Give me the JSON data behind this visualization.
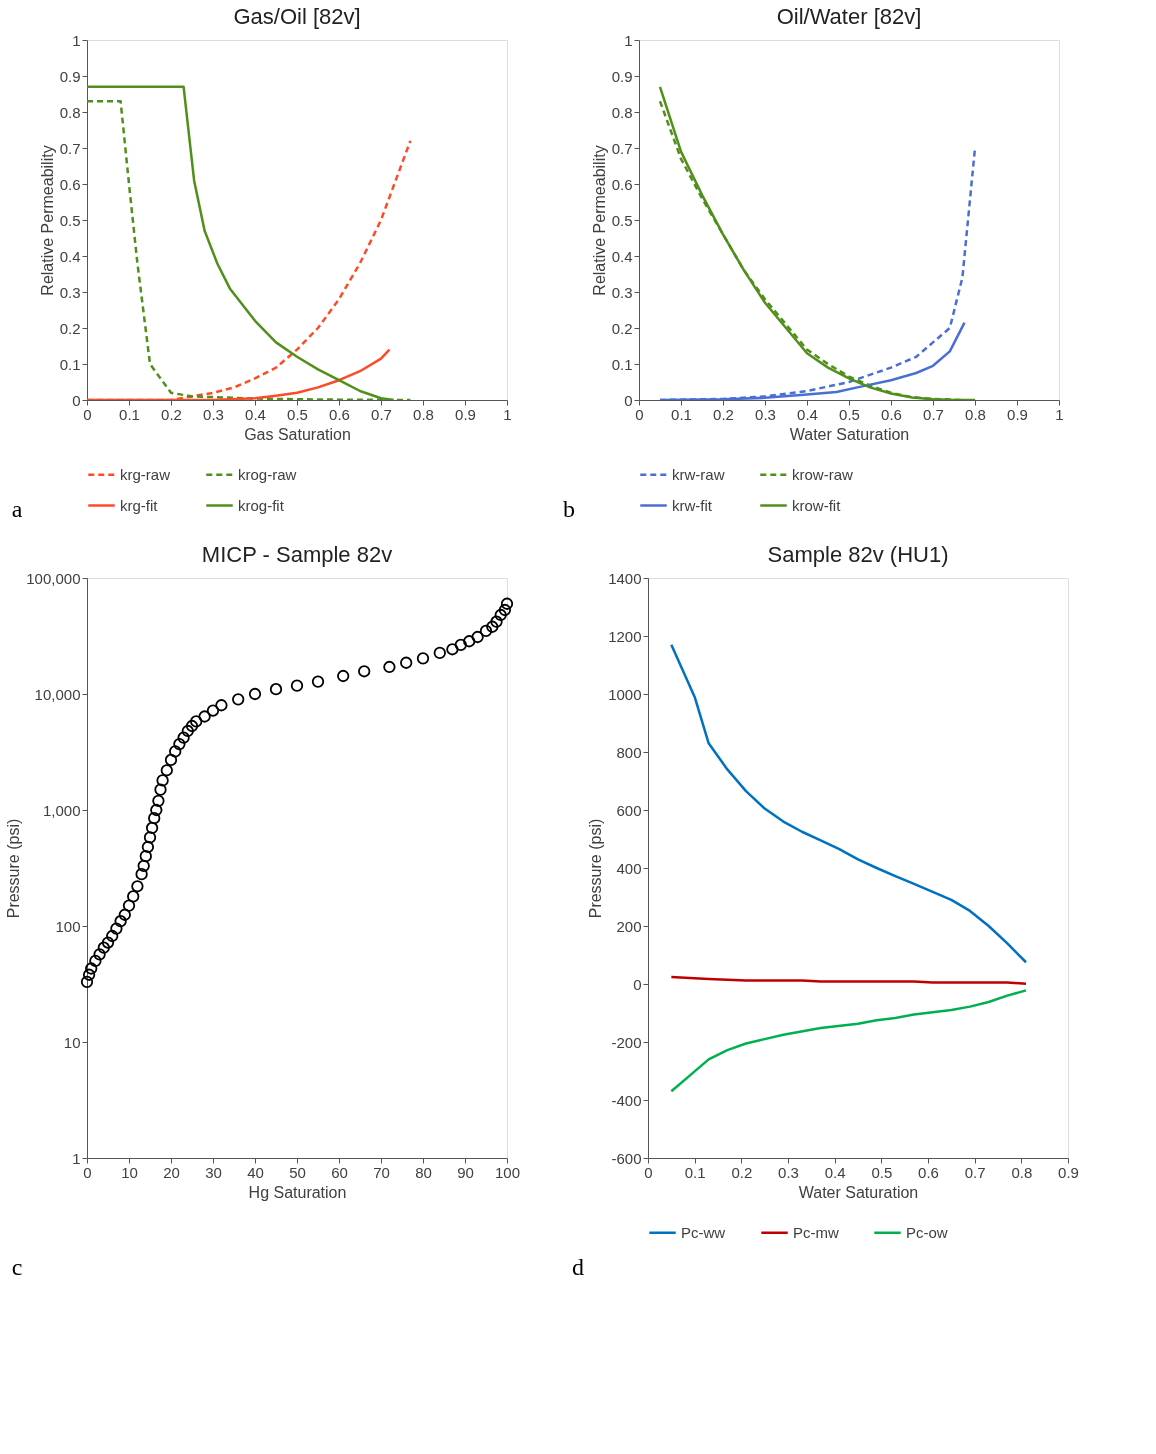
{
  "chart_data": [
    {
      "type": "line",
      "title": "Gas/Oil [82v]",
      "xlabel": "Gas Saturation",
      "ylabel": "Relative Permeability",
      "xlim": [
        0,
        1
      ],
      "ylim": [
        0,
        1
      ],
      "xticks": [
        0,
        0.1,
        0.2,
        0.3,
        0.4,
        0.5,
        0.6,
        0.7,
        0.8,
        0.9,
        1
      ],
      "yticks": [
        0,
        0.1,
        0.2,
        0.3,
        0.4,
        0.5,
        0.6,
        0.7,
        0.8,
        0.9,
        1
      ],
      "grid": false,
      "legend": "bottom",
      "annotations": [
        "a"
      ],
      "series": [
        {
          "name": "krg-raw",
          "color": "#ff4a26",
          "line_style": "dashed",
          "x": [
            0,
            0.1,
            0.2,
            0.25,
            0.3,
            0.35,
            0.4,
            0.45,
            0.5,
            0.55,
            0.6,
            0.65,
            0.7,
            0.77
          ],
          "values": [
            0,
            0,
            0,
            0.01,
            0.02,
            0.035,
            0.06,
            0.09,
            0.14,
            0.2,
            0.28,
            0.38,
            0.5,
            0.72
          ]
        },
        {
          "name": "krog-raw",
          "color": "#4f8f1a",
          "line_style": "dashed",
          "x": [
            0,
            0.08,
            0.1,
            0.12,
            0.15,
            0.2,
            0.25,
            0.3,
            0.4,
            0.5,
            0.6,
            0.77
          ],
          "values": [
            0.83,
            0.83,
            0.6,
            0.38,
            0.1,
            0.02,
            0.01,
            0.008,
            0.004,
            0.002,
            0.001,
            0
          ]
        },
        {
          "name": "krg-fit",
          "color": "#ff4a26",
          "line_style": "solid",
          "x": [
            0,
            0.1,
            0.2,
            0.3,
            0.4,
            0.45,
            0.5,
            0.55,
            0.6,
            0.65,
            0.7,
            0.72
          ],
          "values": [
            0,
            0,
            0,
            0,
            0.005,
            0.012,
            0.02,
            0.035,
            0.055,
            0.08,
            0.115,
            0.14
          ]
        },
        {
          "name": "krog-fit",
          "color": "#4f8f1a",
          "line_style": "solid",
          "x": [
            0,
            0.23,
            0.255,
            0.28,
            0.31,
            0.34,
            0.4,
            0.45,
            0.5,
            0.55,
            0.6,
            0.65,
            0.7,
            0.73
          ],
          "values": [
            0.87,
            0.87,
            0.61,
            0.47,
            0.38,
            0.31,
            0.22,
            0.16,
            0.12,
            0.085,
            0.055,
            0.025,
            0.005,
            0
          ]
        }
      ]
    },
    {
      "type": "line",
      "title": "Oil/Water [82v]",
      "xlabel": "Water Saturation",
      "ylabel": "Relative Permeability",
      "xlim": [
        0,
        1
      ],
      "ylim": [
        0,
        1
      ],
      "xticks": [
        0,
        0.1,
        0.2,
        0.3,
        0.4,
        0.5,
        0.6,
        0.7,
        0.8,
        0.9,
        1
      ],
      "yticks": [
        0,
        0.1,
        0.2,
        0.3,
        0.4,
        0.5,
        0.6,
        0.7,
        0.8,
        0.9,
        1
      ],
      "grid": false,
      "legend": "bottom",
      "annotations": [
        "b"
      ],
      "series": [
        {
          "name": "krw-raw",
          "color": "#4a6fd4",
          "line_style": "dashed",
          "x": [
            0.05,
            0.2,
            0.3,
            0.4,
            0.5,
            0.6,
            0.66,
            0.7,
            0.74,
            0.77,
            0.8
          ],
          "values": [
            0,
            0.003,
            0.01,
            0.025,
            0.05,
            0.09,
            0.12,
            0.16,
            0.2,
            0.34,
            0.7
          ]
        },
        {
          "name": "krow-raw",
          "color": "#4f8f1a",
          "line_style": "dashed",
          "x": [
            0.05,
            0.1,
            0.15,
            0.2,
            0.25,
            0.3,
            0.35,
            0.4,
            0.45,
            0.5,
            0.55,
            0.6,
            0.65,
            0.7,
            0.77
          ],
          "values": [
            0.83,
            0.67,
            0.56,
            0.46,
            0.36,
            0.28,
            0.21,
            0.14,
            0.1,
            0.065,
            0.04,
            0.02,
            0.008,
            0.003,
            0
          ]
        },
        {
          "name": "krw-fit",
          "color": "#4a6fd4",
          "line_style": "solid",
          "x": [
            0.05,
            0.2,
            0.3,
            0.4,
            0.47,
            0.52,
            0.6,
            0.66,
            0.7,
            0.74,
            0.775
          ],
          "values": [
            0,
            0.002,
            0.006,
            0.015,
            0.022,
            0.035,
            0.055,
            0.075,
            0.095,
            0.135,
            0.215
          ]
        },
        {
          "name": "krow-fit",
          "color": "#4f8f1a",
          "line_style": "solid",
          "x": [
            0.05,
            0.1,
            0.15,
            0.2,
            0.25,
            0.3,
            0.35,
            0.4,
            0.45,
            0.5,
            0.55,
            0.6,
            0.65,
            0.7,
            0.75,
            0.8
          ],
          "values": [
            0.87,
            0.69,
            0.57,
            0.46,
            0.36,
            0.27,
            0.2,
            0.13,
            0.09,
            0.06,
            0.035,
            0.018,
            0.007,
            0.002,
            0,
            0
          ]
        }
      ]
    },
    {
      "type": "scatter",
      "title": "MICP - Sample 82v",
      "xlabel": "Hg Saturation",
      "ylabel": "Pressure (psi)",
      "xlim": [
        0,
        100
      ],
      "ylim": [
        1,
        100000
      ],
      "xticks": [
        0,
        10,
        20,
        30,
        40,
        50,
        60,
        70,
        80,
        90,
        100
      ],
      "yticks": [
        1,
        10,
        100,
        {
          "value": 1000,
          "label": "1,000"
        },
        {
          "value": 10000,
          "label": "10,000"
        },
        {
          "value": 100000,
          "label": "100,000"
        }
      ],
      "log": "y",
      "grid": false,
      "legend": false,
      "marker": "circle",
      "annotations": [
        "c"
      ],
      "series": [
        {
          "color": "#000000",
          "x": [
            0,
            0.5,
            1,
            2,
            3,
            4,
            5,
            6,
            7,
            8,
            9,
            10,
            11,
            12,
            13,
            13.5,
            14,
            14.5,
            15,
            15.5,
            16,
            16.5,
            17,
            17.5,
            18,
            19,
            20,
            21,
            22,
            23,
            24,
            25,
            26,
            28,
            30,
            32,
            36,
            40,
            45,
            50,
            55,
            61,
            66,
            72,
            76,
            80,
            84,
            87,
            89,
            91,
            93,
            95,
            96.5,
            97.5,
            98.5,
            99.5,
            100
          ],
          "values": [
            33,
            38,
            43,
            50,
            57,
            65,
            72,
            82,
            95,
            110,
            125,
            150,
            180,
            220,
            280,
            330,
            400,
            480,
            580,
            700,
            850,
            1000,
            1200,
            1500,
            1800,
            2200,
            2700,
            3200,
            3700,
            4200,
            4800,
            5300,
            5800,
            6400,
            7200,
            8000,
            9000,
            10000,
            11000,
            11800,
            12800,
            14300,
            15700,
            17100,
            18600,
            20300,
            22600,
            24300,
            26500,
            28500,
            31000,
            35000,
            38000,
            42000,
            48000,
            53000,
            60000
          ]
        }
      ]
    },
    {
      "type": "line",
      "title": "Sample 82v (HU1)",
      "xlabel": "Water Saturation",
      "ylabel": "Pressure (psi)",
      "xlim": [
        0,
        0.9
      ],
      "ylim": [
        -600,
        1400
      ],
      "xticks": [
        0,
        0.1,
        0.2,
        0.3,
        0.4,
        0.5,
        0.6,
        0.7,
        0.8,
        0.9
      ],
      "yticks": [
        -600,
        -400,
        -200,
        0,
        200,
        400,
        600,
        800,
        1000,
        1200,
        1400
      ],
      "grid": false,
      "legend": "bottom",
      "annotations": [
        "d"
      ],
      "series": [
        {
          "name": "Pc-ww",
          "color": "#0070c0",
          "x": [
            0.05,
            0.1,
            0.13,
            0.17,
            0.21,
            0.25,
            0.29,
            0.33,
            0.37,
            0.41,
            0.45,
            0.49,
            0.53,
            0.57,
            0.61,
            0.65,
            0.69,
            0.73,
            0.77,
            0.81
          ],
          "values": [
            1170,
            990,
            830,
            740,
            665,
            605,
            560,
            525,
            495,
            465,
            430,
            400,
            372,
            345,
            318,
            290,
            252,
            200,
            140,
            75
          ]
        },
        {
          "name": "Pc-mw",
          "color": "#c00000",
          "x": [
            0.05,
            0.13,
            0.21,
            0.33,
            0.37,
            0.57,
            0.61,
            0.77,
            0.81
          ],
          "values": [
            24,
            17,
            12,
            12,
            9,
            9,
            5,
            5,
            1
          ]
        },
        {
          "name": "Pc-ow",
          "color": "#00b050",
          "x": [
            0.05,
            0.09,
            0.13,
            0.17,
            0.21,
            0.25,
            0.29,
            0.37,
            0.45,
            0.49,
            0.53,
            0.57,
            0.65,
            0.69,
            0.73,
            0.77,
            0.81
          ],
          "values": [
            -370,
            -315,
            -260,
            -228,
            -205,
            -190,
            -175,
            -152,
            -137,
            -125,
            -117,
            -105,
            -90,
            -78,
            -62,
            -40,
            -22
          ]
        }
      ]
    }
  ]
}
